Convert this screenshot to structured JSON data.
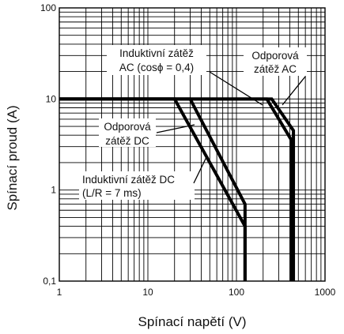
{
  "chart_data": {
    "type": "line",
    "xscale": "log",
    "yscale": "log",
    "xlim": [
      1,
      1000
    ],
    "ylim": [
      0.1,
      100
    ],
    "grid": true,
    "xlabel": "Spínací napětí (V)",
    "ylabel": "Spínací proud (A)",
    "xticks": [
      {
        "value": 1,
        "label": "1"
      },
      {
        "value": 10,
        "label": "10"
      },
      {
        "value": 100,
        "label": "100"
      },
      {
        "value": 1000,
        "label": "1000"
      }
    ],
    "yticks": [
      {
        "value": 0.1,
        "label": "0,1"
      },
      {
        "value": 1,
        "label": "1"
      },
      {
        "value": 10,
        "label": "10"
      },
      {
        "value": 100,
        "label": "100"
      }
    ],
    "series": [
      {
        "name": "Odporová zátěž DC",
        "x": [
          1,
          30,
          125,
          125
        ],
        "y": [
          10,
          10,
          0.7,
          0.1
        ]
      },
      {
        "name": "Induktivní zátěž DC (L/R = 7 ms)",
        "x": [
          1,
          20,
          125,
          125
        ],
        "y": [
          10,
          10,
          0.4,
          0.1
        ]
      },
      {
        "name": "Odporová zátěž AC",
        "x": [
          1,
          250,
          440,
          440
        ],
        "y": [
          10,
          10,
          4.5,
          0.1
        ]
      },
      {
        "name": "Induktivní zátěž AC (cosϕ = 0,4)",
        "x": [
          1,
          220,
          420,
          420
        ],
        "y": [
          10,
          10,
          3.5,
          0.1
        ]
      }
    ],
    "annotations": [
      {
        "lines": [
          "Induktivní zátěž",
          "AC (cosϕ = 0,4)"
        ]
      },
      {
        "lines": [
          "Odporová",
          "zátěž AC"
        ]
      },
      {
        "lines": [
          "Odporová",
          "zátěž DC"
        ]
      },
      {
        "lines": [
          "Induktivní zátěž DC",
          "(L/R = 7 ms)"
        ]
      }
    ]
  }
}
